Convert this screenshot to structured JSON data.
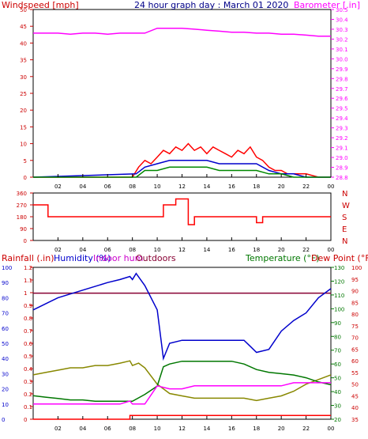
{
  "header": {
    "left": "Windspeed [mph]",
    "center": "24 hour graph day : March 01 2020",
    "right": "Barometer [.in]"
  },
  "bottom_header": {
    "rainfall": "Rainfall (.in)",
    "humidity": "Humidity (%)",
    "indoor": "Indoor hum",
    "outdoors": "Outdoors",
    "temperature": "Temperature (°F)",
    "dewpoint": "Dew Point (°F)"
  },
  "colors": {
    "windspeed": "#cc0000",
    "barometer": "#ff00ff",
    "direction": "#ff0000",
    "humidity_out": "#0000cc",
    "humidity_in": "#ff00ff",
    "temperature": "#007700",
    "dewpoint": "#888800",
    "rain": "#ff0000",
    "hline": "#880033"
  },
  "x_ticks": [
    "02",
    "04",
    "06",
    "08",
    "10",
    "12",
    "14",
    "16",
    "18",
    "20",
    "22",
    "00"
  ],
  "wind_compass": [
    "N",
    "W",
    "S",
    "E",
    "N"
  ],
  "chart_data": [
    {
      "type": "line",
      "name": "wind-barometer",
      "xlabel": "",
      "y_left": {
        "label": "Windspeed [mph]",
        "range": [
          0,
          50
        ],
        "ticks": [
          "0",
          "5",
          "10",
          "15",
          "20",
          "25",
          "30",
          "35",
          "40",
          "45",
          "50"
        ]
      },
      "y_right": {
        "label": "Barometer [.in]",
        "range": [
          28.8,
          30.5
        ],
        "ticks": [
          "28.8",
          "28.9",
          "29.0",
          "29.1",
          "29.2",
          "29.3",
          "29.4",
          "29.5",
          "29.6",
          "29.7",
          "29.8",
          "29.9",
          "30.0",
          "30.1",
          "30.2",
          "30.3",
          "30.4",
          "30.5"
        ]
      },
      "series": [
        {
          "color": "#ff00ff",
          "x": [
            0,
            1,
            2,
            3,
            4,
            5,
            6,
            7,
            8,
            9,
            10,
            11,
            12,
            13,
            14,
            15,
            16,
            17,
            18,
            19,
            20,
            21,
            22,
            23,
            24
          ],
          "values": [
            30.26,
            30.26,
            30.26,
            30.25,
            30.26,
            30.26,
            30.25,
            30.26,
            30.26,
            30.26,
            30.31,
            30.31,
            30.31,
            30.3,
            30.29,
            30.28,
            30.27,
            30.27,
            30.26,
            30.26,
            30.25,
            30.25,
            30.24,
            30.23,
            30.23
          ]
        },
        {
          "color": "#ff0000",
          "x": [
            0,
            8.0,
            8.5,
            9,
            9.5,
            10,
            10.5,
            11,
            11.5,
            12,
            12.5,
            13,
            13.5,
            14,
            14.5,
            15,
            15.5,
            16,
            16.5,
            17,
            17.5,
            18,
            18.5,
            19,
            19.5,
            20,
            20.5,
            21,
            22,
            23,
            24
          ],
          "values": [
            0,
            0,
            3,
            5,
            4,
            6,
            8,
            7,
            9,
            8,
            10,
            8,
            9,
            7,
            9,
            8,
            7,
            6,
            8,
            7,
            9,
            6,
            5,
            3,
            2,
            2,
            1,
            1,
            1,
            0,
            0
          ]
        },
        {
          "color": "#0000cc",
          "x": [
            0,
            8.3,
            9,
            10,
            11,
            12,
            13,
            14,
            15,
            16,
            17,
            18,
            19,
            20,
            21,
            22,
            24
          ],
          "values": [
            0,
            1,
            3,
            4,
            5,
            5,
            5,
            5,
            4,
            4,
            4,
            4,
            2,
            1,
            1,
            0,
            0
          ]
        },
        {
          "color": "#008800",
          "x": [
            0,
            8.3,
            9,
            10,
            11,
            12,
            13,
            14,
            15,
            16,
            17,
            18,
            19,
            20,
            21,
            22,
            24
          ],
          "values": [
            0,
            0,
            2,
            2,
            3,
            3,
            3,
            3,
            2,
            2,
            2,
            2,
            1,
            1,
            0,
            0,
            0
          ]
        }
      ]
    },
    {
      "type": "line",
      "name": "wind-direction",
      "y": {
        "range": [
          0,
          360
        ],
        "ticks": [
          "0",
          "90",
          "180",
          "270",
          "360"
        ]
      },
      "series": [
        {
          "color": "#ff0000",
          "x": [
            0,
            1.2,
            1.2,
            10.5,
            10.5,
            11.5,
            11.5,
            12.5,
            12.5,
            13,
            13,
            18,
            18,
            18.5,
            18.5,
            24
          ],
          "values": [
            270,
            270,
            180,
            180,
            270,
            270,
            315,
            315,
            120,
            120,
            180,
            180,
            135,
            135,
            180,
            180
          ]
        }
      ]
    },
    {
      "type": "line",
      "name": "rain-humidity-temperature",
      "y_rain": {
        "label": "Rainfall (.in)",
        "range": [
          0,
          1.2
        ],
        "ticks": [
          "0",
          "0.1",
          "0.2",
          "0.3",
          "0.4",
          "0.5",
          "0.6",
          "0.7",
          "0.8",
          "0.9",
          "1",
          "1.1",
          "1.2"
        ]
      },
      "y_humidity": {
        "label": "Humidity (%)",
        "range": [
          0,
          100
        ],
        "ticks": [
          "0",
          "10",
          "20",
          "30",
          "40",
          "50",
          "60",
          "70",
          "80",
          "90",
          "100"
        ]
      },
      "y_temperature": {
        "label": "Temperature (°F)",
        "range": [
          20,
          130
        ],
        "ticks": [
          "20",
          "30",
          "40",
          "50",
          "60",
          "70",
          "80",
          "90",
          "100",
          "110",
          "120",
          "130"
        ]
      },
      "y_dewpoint": {
        "label": "Dew Point (°F)",
        "range": [
          35,
          100
        ],
        "ticks": [
          "35",
          "40",
          "45",
          "50",
          "55",
          "60",
          "65",
          "70",
          "75",
          "80",
          "85",
          "90",
          "95",
          "100"
        ]
      },
      "series": [
        {
          "color": "#0000cc",
          "x": [
            0,
            0.5,
            2,
            4,
            6,
            7,
            7.8,
            8.0,
            8.3,
            9,
            10,
            10.5,
            11,
            12,
            13,
            14,
            15,
            16,
            17,
            17.5,
            18,
            19,
            20,
            21,
            22,
            23,
            24
          ],
          "values": [
            72,
            74,
            80,
            85,
            90,
            92,
            94,
            92,
            96,
            88,
            72,
            40,
            50,
            52,
            52,
            52,
            52,
            52,
            52,
            48,
            44,
            46,
            58,
            65,
            70,
            80,
            86
          ]
        },
        {
          "color": "#ff00ff",
          "x": [
            0,
            2,
            4,
            6,
            7,
            7.8,
            8,
            9,
            10,
            11,
            12,
            13,
            14,
            15,
            16,
            17,
            18,
            19,
            20,
            21,
            22,
            23,
            24
          ],
          "values": [
            10,
            10,
            10,
            10,
            10,
            12,
            10,
            10,
            22,
            20,
            20,
            22,
            22,
            22,
            22,
            22,
            22,
            22,
            22,
            24,
            24,
            24,
            24
          ]
        },
        {
          "color": "#007700",
          "x": [
            0,
            1,
            2,
            3,
            4,
            5,
            6,
            7,
            8,
            9,
            10,
            10.5,
            11,
            12,
            13,
            14,
            15,
            16,
            17,
            18,
            19,
            20,
            21,
            22,
            23,
            24
          ],
          "values": [
            37,
            36,
            35,
            34,
            34,
            33,
            33,
            33,
            33,
            38,
            44,
            58,
            60,
            62,
            62,
            62,
            62,
            62,
            60,
            56,
            54,
            53,
            52,
            50,
            47,
            45
          ]
        },
        {
          "color": "#888800",
          "x": [
            0,
            1,
            2,
            3,
            4,
            5,
            6,
            7,
            7.8,
            8.0,
            8.5,
            9,
            10,
            11,
            12,
            13,
            14,
            15,
            16,
            17,
            18,
            19,
            20,
            21,
            22,
            23,
            24
          ],
          "values": [
            54,
            55,
            56,
            57,
            57,
            58,
            58,
            59,
            60,
            58,
            59,
            57,
            50,
            46,
            45,
            44,
            44,
            44,
            44,
            44,
            43,
            44,
            45,
            47,
            50,
            52,
            54
          ]
        },
        {
          "color": "#ff0000",
          "x": [
            0,
            7.8,
            7.8,
            24
          ],
          "values": [
            0,
            0,
            0.03,
            0.03
          ]
        }
      ],
      "hline": {
        "value": 83,
        "color": "#880033"
      }
    }
  ]
}
